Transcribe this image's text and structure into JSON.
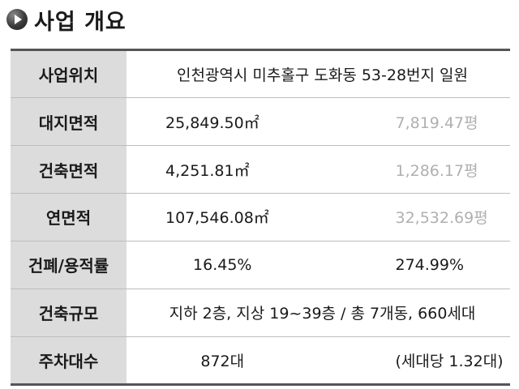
{
  "heading": {
    "title": "사업 개요",
    "icon": "play-bullet-icon"
  },
  "rows": [
    {
      "label": "사업위치",
      "value": "인천광역시 미추홀구 도화동 53-28번지 일원"
    },
    {
      "label": "대지면적",
      "value1": "25,849.50㎡",
      "value2": "7,819.47평"
    },
    {
      "label": "건축면적",
      "value1": "4,251.81㎡",
      "value2": "1,286.17평"
    },
    {
      "label": "연면적",
      "value1": "107,546.08㎡",
      "value2": "32,532.69평"
    },
    {
      "label": "건폐/용적률",
      "value1": "16.45%",
      "value2": "274.99%"
    },
    {
      "label": "건축규모",
      "value": "지하 2층, 지상 19~39층 / 총 7개동, 660세대"
    },
    {
      "label": "주차대수",
      "value1": "872대",
      "value2": "(세대당 1.32대)"
    }
  ],
  "colors": {
    "label_bg": "#dcdcdc",
    "muted_text": "#b0b0b0",
    "rule": "#555555"
  }
}
